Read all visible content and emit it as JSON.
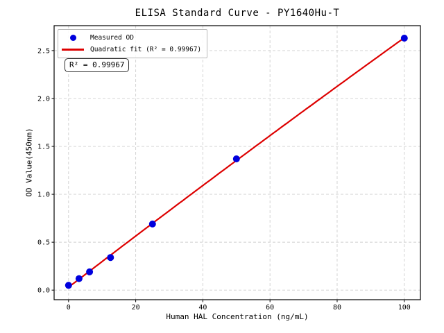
{
  "figure": {
    "title": "ELISA Standard Curve - PY1640Hu-T",
    "xlabel": "Human HAL Concentration (ng/mL)",
    "ylabel": "OD Value(450nm)",
    "annotation": "R² = 0.99967",
    "background_color": "#ffffff"
  },
  "legend": {
    "position": "upper left",
    "items": [
      {
        "label": "Measured OD",
        "marker": "dot",
        "color": "#0000dd"
      },
      {
        "label": "Quadratic fit (R² = 0.99967)",
        "marker": "line",
        "color": "#dd0000"
      }
    ]
  },
  "chart_data": {
    "type": "scatter",
    "title": "ELISA Standard Curve - PY1640Hu-T",
    "xlabel": "Human HAL Concentration (ng/mL)",
    "ylabel": "OD Value(450nm)",
    "x": [
      0,
      3.125,
      6.25,
      12.5,
      25,
      50,
      100
    ],
    "series": [
      {
        "name": "Measured OD",
        "type": "scatter",
        "color": "#0000dd",
        "values": [
          0.05,
          0.12,
          0.19,
          0.34,
          0.69,
          1.37,
          2.63
        ]
      },
      {
        "name": "Quadratic fit (R² = 0.99967)",
        "type": "line",
        "color": "#dd0000",
        "fit": "quadratic",
        "fit_range": [
          0,
          100
        ],
        "r_squared": 0.99967
      }
    ],
    "xticks": [
      0,
      20,
      40,
      60,
      80,
      100
    ],
    "xtick_labels": [
      "0",
      "20",
      "40",
      "60",
      "80",
      "100"
    ],
    "yticks": [
      0,
      0.5,
      1,
      1.5,
      2,
      2.5
    ],
    "ytick_labels": [
      "0.0",
      "0.5",
      "1.0",
      "1.5",
      "2.0",
      "2.5"
    ],
    "xlim": [
      -4.3,
      104.8
    ],
    "ylim": [
      -0.1,
      2.76
    ],
    "grid": true,
    "grid_style": "dashed",
    "grid_color": "#cfcfcf",
    "legend_position": "upper left"
  }
}
